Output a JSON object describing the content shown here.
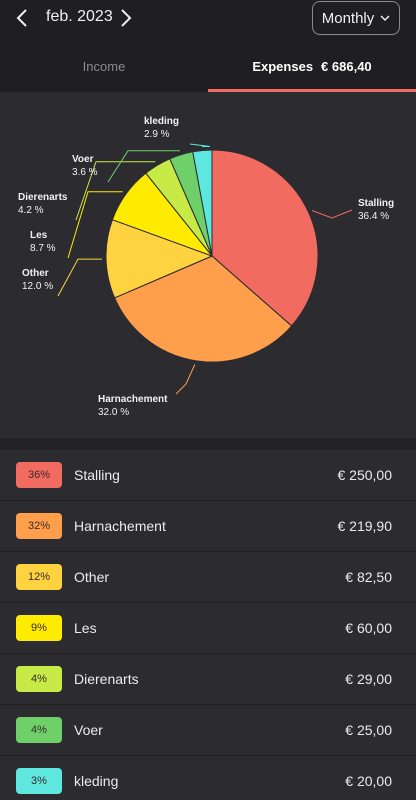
{
  "header": {
    "period": "feb. 2023",
    "mode": "Monthly"
  },
  "tabs": {
    "income": "Income",
    "expenses": "Expenses",
    "expenses_total": "€ 686,40"
  },
  "chart_data": {
    "type": "pie",
    "slices": [
      {
        "label": "Stalling",
        "pct": 36.4,
        "pct_label": "36.4 %",
        "color": "#f26b61"
      },
      {
        "label": "Harnachement",
        "pct": 32.0,
        "pct_label": "32.0 %",
        "color": "#ff9f4c"
      },
      {
        "label": "Other",
        "pct": 12.0,
        "pct_label": "12.0 %",
        "color": "#ffd23f"
      },
      {
        "label": "Les",
        "pct": 8.7,
        "pct_label": "8.7 %",
        "color": "#ffeb00"
      },
      {
        "label": "Dierenarts",
        "pct": 4.2,
        "pct_label": "4.2 %",
        "color": "#c7ea46"
      },
      {
        "label": "Voer",
        "pct": 3.6,
        "pct_label": "3.6 %",
        "color": "#6fd06a"
      },
      {
        "label": "kleding",
        "pct": 2.9,
        "pct_label": "2.9 %",
        "color": "#5ee7df"
      }
    ]
  },
  "list": [
    {
      "badge": "36%",
      "name": "Stalling",
      "amount": "€ 250,00",
      "color": "#f26b61"
    },
    {
      "badge": "32%",
      "name": "Harnachement",
      "amount": "€ 219,90",
      "color": "#ff9f4c"
    },
    {
      "badge": "12%",
      "name": "Other",
      "amount": "€ 82,50",
      "color": "#ffd23f"
    },
    {
      "badge": "9%",
      "name": "Les",
      "amount": "€ 60,00",
      "color": "#ffeb00"
    },
    {
      "badge": "4%",
      "name": "Dierenarts",
      "amount": "€ 29,00",
      "color": "#c7ea46"
    },
    {
      "badge": "4%",
      "name": "Voer",
      "amount": "€ 25,00",
      "color": "#6fd06a"
    },
    {
      "badge": "3%",
      "name": "kleding",
      "amount": "€ 20,00",
      "color": "#5ee7df"
    }
  ]
}
